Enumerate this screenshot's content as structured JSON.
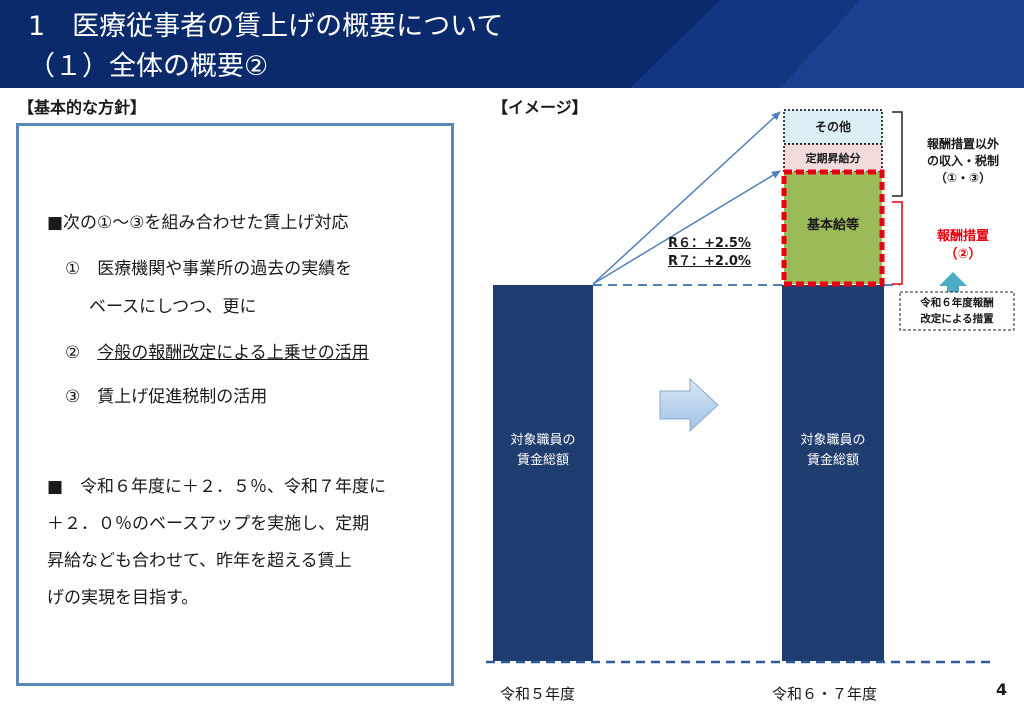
{
  "header": {
    "line1": "1　医療従事者の賃上げの概要について",
    "line2": "（１）全体の概要②"
  },
  "policy": {
    "heading": "【基本的な方針】",
    "intro": "■次の①～③を組み合わせた賃上げ対応",
    "item1_a": "①　医療機関や事業所の過去の実績を",
    "item1_b": "ベースにしつつ、更に",
    "item2_num": "②　",
    "item2_text": "今般の報酬改定による上乗せの活用",
    "item3": "③　賃上げ促進税制の活用",
    "para_1": "■　令和６年度に＋２．５％、令和７年度に",
    "para_2": "＋２．０％のベースアップを実施し、定期",
    "para_3": "昇給なども合わせて、昨年を超える賃上",
    "para_4": "げの実現を目指す。"
  },
  "image": {
    "heading": "【イメージ】",
    "bar_left_label_1": "対象職員の",
    "bar_left_label_2": "賃金総額",
    "bar_right_label_1": "対象職員の",
    "bar_right_label_2": "賃金総額",
    "stack_top": "その他",
    "stack_mid": "定期昇給分",
    "stack_base": "基本給等",
    "rate_r6": "R６：+2.5%",
    "rate_r7": "R７：+2.0%",
    "bracket_top_1": "報酬措置以外",
    "bracket_top_2": "の収入・税制",
    "bracket_top_3": "（①・③）",
    "bracket_red_1": "報酬措置",
    "bracket_red_2": "（②）",
    "note_1": "令和６年度報酬",
    "note_2": "改定による措置",
    "x_left": "令和５年度",
    "x_right": "令和６・７年度"
  },
  "page_number": "4",
  "colors": {
    "header_bg": "#0b2a6b",
    "bar": "#1f3d6e",
    "base_green": "#9bbb59",
    "red_dash": "#e60012",
    "other_box": "#dbeef4",
    "raise_box": "#f2dcdb",
    "teal_arrow": "#4bacc6",
    "policy_border": "#5b86b7"
  }
}
